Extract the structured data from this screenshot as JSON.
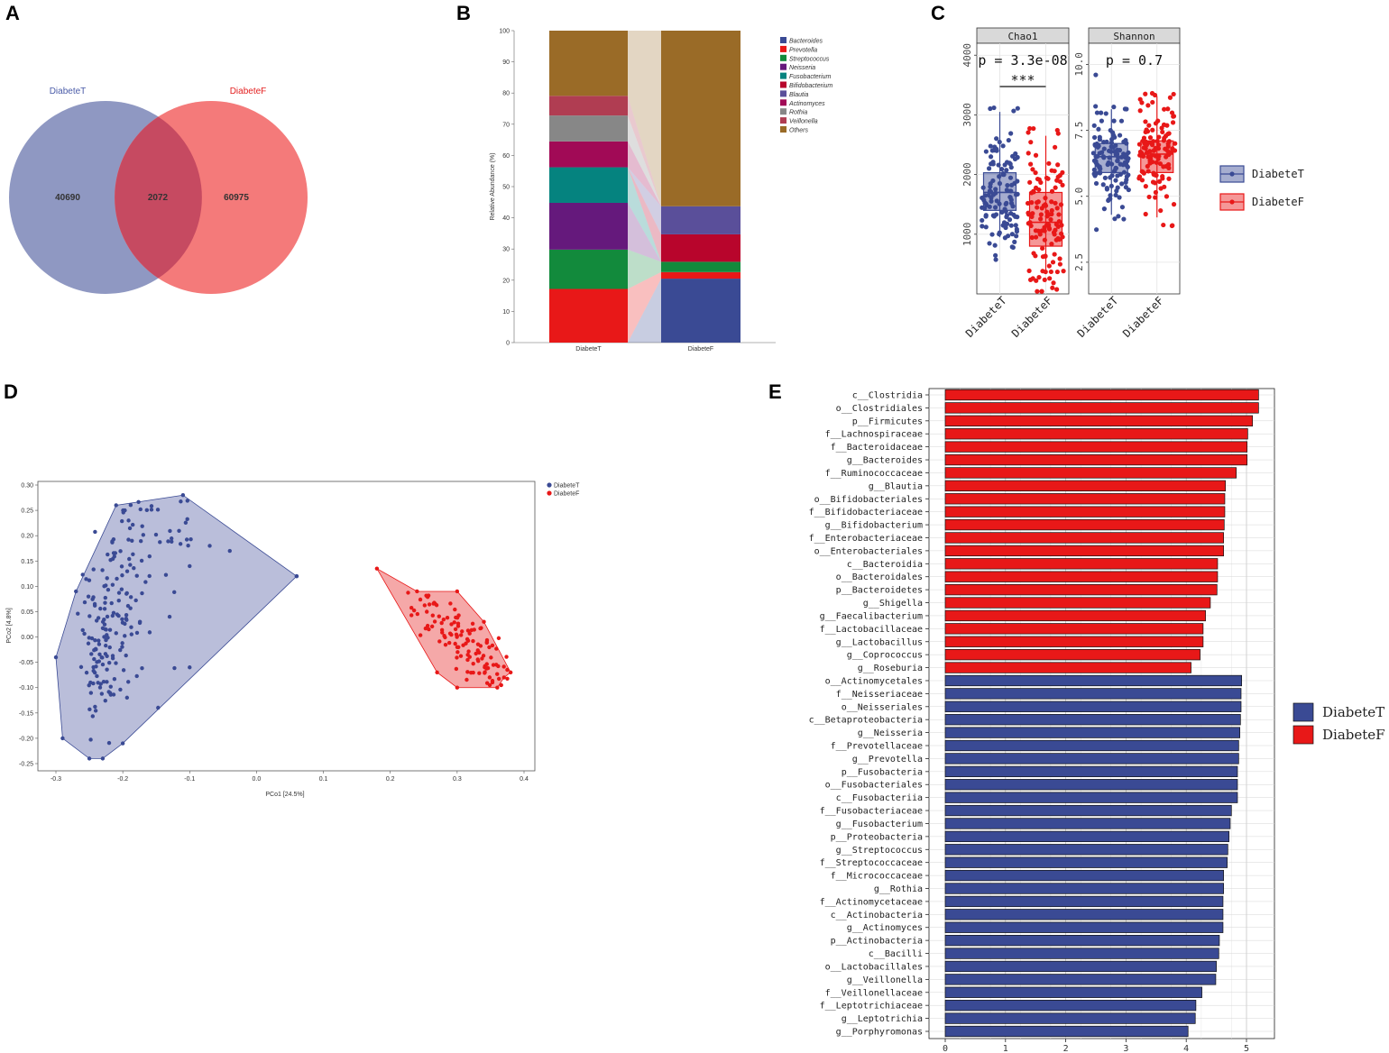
{
  "panels": {
    "A": "A",
    "B": "B",
    "C": "C",
    "D": "D",
    "E": "E"
  },
  "chart_data": [
    {
      "panel": "A",
      "type": "venn",
      "sets": [
        {
          "name": "DiabeteT",
          "only": 40690,
          "color": "#6f7bb0"
        },
        {
          "name": "DiabeteF",
          "only": 60975,
          "color": "#f15a5a"
        }
      ],
      "intersection": 2072
    },
    {
      "panel": "B",
      "type": "bar",
      "stacked": true,
      "categories": [
        "DiabeteT",
        "DiabeteF"
      ],
      "ylabel": "Relative Abundance (%)",
      "ylim": [
        0,
        100
      ],
      "yticks": [
        0,
        10,
        20,
        30,
        40,
        50,
        60,
        70,
        80,
        90,
        100
      ],
      "series": [
        {
          "name": "Bacteroides",
          "color": "#3a4a94",
          "values": [
            0,
            20.5
          ]
        },
        {
          "name": "Prevotella",
          "color": "#e81818",
          "values": [
            17.2,
            2.1
          ]
        },
        {
          "name": "Streptococcus",
          "color": "#128a3c",
          "values": [
            12.6,
            3.3
          ]
        },
        {
          "name": "Neisseria",
          "color": "#65197c",
          "values": [
            15.0,
            0
          ]
        },
        {
          "name": "Fusobacterium",
          "color": "#05837f",
          "values": [
            11.4,
            0
          ]
        },
        {
          "name": "Bifidobacterium",
          "color": "#b8052c",
          "values": [
            0,
            8.8
          ]
        },
        {
          "name": "Blautia",
          "color": "#5a4f9a",
          "values": [
            0,
            9.0
          ]
        },
        {
          "name": "Actinomyces",
          "color": "#a10a56",
          "values": [
            8.3,
            0
          ]
        },
        {
          "name": "Rothia",
          "color": "#878787",
          "values": [
            8.3,
            0
          ]
        },
        {
          "name": "Veillonella",
          "color": "#b03d52",
          "values": [
            6.3,
            0
          ]
        },
        {
          "name": "Others",
          "color": "#9a6b27",
          "values": [
            20.9,
            56.3
          ]
        }
      ]
    },
    {
      "panel": "C",
      "type": "boxplot",
      "facets": [
        {
          "title": "Chao1",
          "pvalue": "p = 3.3e-08",
          "signif": "***",
          "yticks": [
            "1000",
            "2000",
            "3000",
            "4000"
          ],
          "ylim": [
            0,
            4200
          ],
          "groups": [
            {
              "name": "DiabeteT",
              "q1": 1400,
              "median": 1700,
              "q3": 2030,
              "whisker_low": 950,
              "whisker_high": 3050
            },
            {
              "name": "DiabeteF",
              "q1": 800,
              "median": 1200,
              "q3": 1700,
              "whisker_low": 350,
              "whisker_high": 2650
            }
          ]
        },
        {
          "title": "Shannon",
          "pvalue": "p = 0.7",
          "signif": "",
          "yticks": [
            "2.5",
            "5.0",
            "7.5",
            "10.0"
          ],
          "ylim": [
            1.3,
            10.8
          ],
          "groups": [
            {
              "name": "DiabeteT",
              "q1": 5.9,
              "median": 6.5,
              "q3": 7.0,
              "whisker_low": 4.3,
              "whisker_high": 8.3
            },
            {
              "name": "DiabeteF",
              "q1": 5.9,
              "median": 6.6,
              "q3": 7.1,
              "whisker_low": 4.2,
              "whisker_high": 8.8
            }
          ]
        }
      ],
      "legend": [
        "DiabeteT",
        "DiabeteF"
      ]
    },
    {
      "panel": "D",
      "type": "scatter",
      "xlabel": "PCo1 [24.5%]",
      "ylabel": "PCo2 [4.8%]",
      "xlim": [
        -0.33,
        0.42
      ],
      "ylim": [
        -0.27,
        0.31
      ],
      "xticks": [
        "-0.3",
        "-0.2",
        "-0.1",
        "0.0",
        "0.1",
        "0.2",
        "0.3",
        "0.4"
      ],
      "yticks": [
        "-0.25",
        "-0.20",
        "-0.15",
        "-0.10",
        "-0.05",
        "0.00",
        "0.05",
        "0.10",
        "0.15",
        "0.20",
        "0.25",
        "0.30"
      ],
      "legend": [
        "DiabeteT",
        "DiabeteF"
      ],
      "hulls": [
        {
          "name": "DiabeteT",
          "points": [
            [
              -0.3,
              -0.04
            ],
            [
              -0.29,
              -0.2
            ],
            [
              -0.25,
              -0.24
            ],
            [
              -0.23,
              -0.24
            ],
            [
              -0.2,
              -0.21
            ],
            [
              0.06,
              0.12
            ],
            [
              -0.11,
              0.28
            ],
            [
              -0.21,
              0.26
            ],
            [
              -0.27,
              0.09
            ]
          ]
        },
        {
          "name": "DiabeteF",
          "points": [
            [
              0.18,
              0.135
            ],
            [
              0.24,
              0.09
            ],
            [
              0.3,
              0.09
            ],
            [
              0.34,
              0.03
            ],
            [
              0.38,
              -0.07
            ],
            [
              0.37,
              -0.08
            ],
            [
              0.36,
              -0.1
            ],
            [
              0.3,
              -0.1
            ],
            [
              0.27,
              -0.07
            ]
          ]
        }
      ],
      "points_extra": [
        [
          0.06,
          0.12
        ],
        [
          -0.04,
          0.17
        ],
        [
          -0.07,
          0.18
        ],
        [
          -0.1,
          0.14
        ],
        [
          -0.13,
          0.04
        ],
        [
          -0.1,
          -0.06
        ]
      ]
    },
    {
      "panel": "E",
      "type": "bar",
      "orientation": "horizontal",
      "xlim": [
        0,
        5.4
      ],
      "xticks": [
        "0",
        "1",
        "2",
        "3",
        "4",
        "5"
      ],
      "legend": [
        "DiabeteT",
        "DiabeteF"
      ],
      "categories": [
        "c__Clostridia",
        "o__Clostridiales",
        "p__Firmicutes",
        "f__Lachnospiraceae",
        "f__Bacteroidaceae",
        "g__Bacteroides",
        "f__Ruminococcaceae",
        "g__Blautia",
        "o__Bifidobacteriales",
        "f__Bifidobacteriaceae",
        "g__Bifidobacterium",
        "f__Enterobacteriaceae",
        "o__Enterobacteriales",
        "c__Bacteroidia",
        "o__Bacteroidales",
        "p__Bacteroidetes",
        "g__Shigella",
        "g__Faecalibacterium",
        "f__Lactobacillaceae",
        "g__Lactobacillus",
        "g__Coprococcus",
        "g__Roseburia",
        "o__Actinomycetales",
        "f__Neisseriaceae",
        "o__Neisseriales",
        "c__Betaproteobacteria",
        "g__Neisseria",
        "f__Prevotellaceae",
        "g__Prevotella",
        "p__Fusobacteria",
        "o__Fusobacteriales",
        "c__Fusobacteriia",
        "f__Fusobacteriaceae",
        "g__Fusobacterium",
        "p__Proteobacteria",
        "g__Streptococcus",
        "f__Streptococcaceae",
        "f__Micrococcaceae",
        "g__Rothia",
        "f__Actinomycetaceae",
        "c__Actinobacteria",
        "g__Actinomyces",
        "p__Actinobacteria",
        "c__Bacilli",
        "o__Lactobacillales",
        "g__Veillonella",
        "f__Veillonellaceae",
        "f__Leptotrichiaceae",
        "g__Leptotrichia",
        "g__Porphyromonas"
      ],
      "values": [
        5.2,
        5.2,
        5.1,
        5.02,
        5.01,
        5.01,
        4.83,
        4.65,
        4.64,
        4.64,
        4.63,
        4.62,
        4.62,
        4.52,
        4.52,
        4.51,
        4.4,
        4.32,
        4.28,
        4.28,
        4.23,
        4.08,
        4.92,
        4.91,
        4.91,
        4.9,
        4.89,
        4.87,
        4.87,
        4.85,
        4.85,
        4.85,
        4.75,
        4.73,
        4.71,
        4.69,
        4.68,
        4.62,
        4.62,
        4.61,
        4.61,
        4.61,
        4.55,
        4.54,
        4.5,
        4.49,
        4.26,
        4.16,
        4.15,
        4.03
      ],
      "groups": [
        "DiabeteF",
        "DiabeteF",
        "DiabeteF",
        "DiabeteF",
        "DiabeteF",
        "DiabeteF",
        "DiabeteF",
        "DiabeteF",
        "DiabeteF",
        "DiabeteF",
        "DiabeteF",
        "DiabeteF",
        "DiabeteF",
        "DiabeteF",
        "DiabeteF",
        "DiabeteF",
        "DiabeteF",
        "DiabeteF",
        "DiabeteF",
        "DiabeteF",
        "DiabeteF",
        "DiabeteF",
        "DiabeteT",
        "DiabeteT",
        "DiabeteT",
        "DiabeteT",
        "DiabeteT",
        "DiabeteT",
        "DiabeteT",
        "DiabeteT",
        "DiabeteT",
        "DiabeteT",
        "DiabeteT",
        "DiabeteT",
        "DiabeteT",
        "DiabeteT",
        "DiabeteT",
        "DiabeteT",
        "DiabeteT",
        "DiabeteT",
        "DiabeteT",
        "DiabeteT",
        "DiabeteT",
        "DiabeteT",
        "DiabeteT",
        "DiabeteT",
        "DiabeteT",
        "DiabeteT",
        "DiabeteT",
        "DiabeteT"
      ]
    }
  ],
  "colors": {
    "blue": "#3a4a94",
    "red": "#e81818",
    "vennBlue": "#6f7bb0",
    "vennRed": "#f15a5a"
  }
}
